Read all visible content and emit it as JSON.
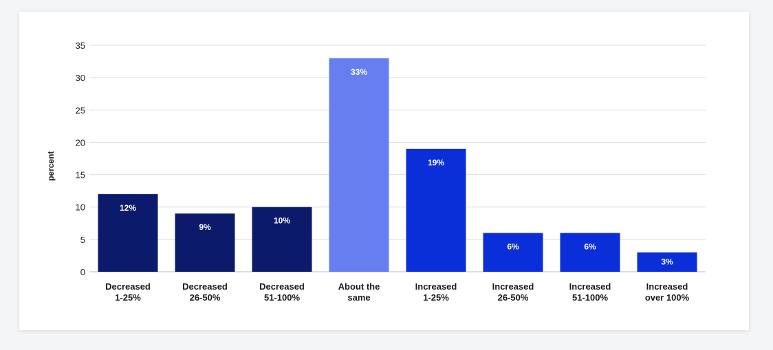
{
  "chart_data": {
    "type": "bar",
    "categories": [
      [
        "Decreased",
        "1-25%"
      ],
      [
        "Decreased",
        "26-50%"
      ],
      [
        "Decreased",
        "51-100%"
      ],
      [
        "About the",
        "same"
      ],
      [
        "Increased",
        "1-25%"
      ],
      [
        "Increased",
        "26-50%"
      ],
      [
        "Increased",
        "51-100%"
      ],
      [
        "Increased",
        "over 100%"
      ]
    ],
    "values": [
      12,
      9,
      10,
      33,
      19,
      6,
      6,
      3
    ],
    "data_labels": [
      "12%",
      "9%",
      "10%",
      "33%",
      "19%",
      "6%",
      "6%",
      "3%"
    ],
    "bar_colors": [
      "#0c1a6b",
      "#0c1a6b",
      "#0c1a6b",
      "#667eef",
      "#0a2fd9",
      "#0a2fd9",
      "#0a2fd9",
      "#0a2fd9"
    ],
    "title": "",
    "xlabel": "",
    "ylabel": "percent",
    "ylim": [
      0,
      35
    ],
    "yticks": [
      0,
      5,
      10,
      15,
      20,
      25,
      30,
      35
    ],
    "grid": true,
    "legend": false
  }
}
